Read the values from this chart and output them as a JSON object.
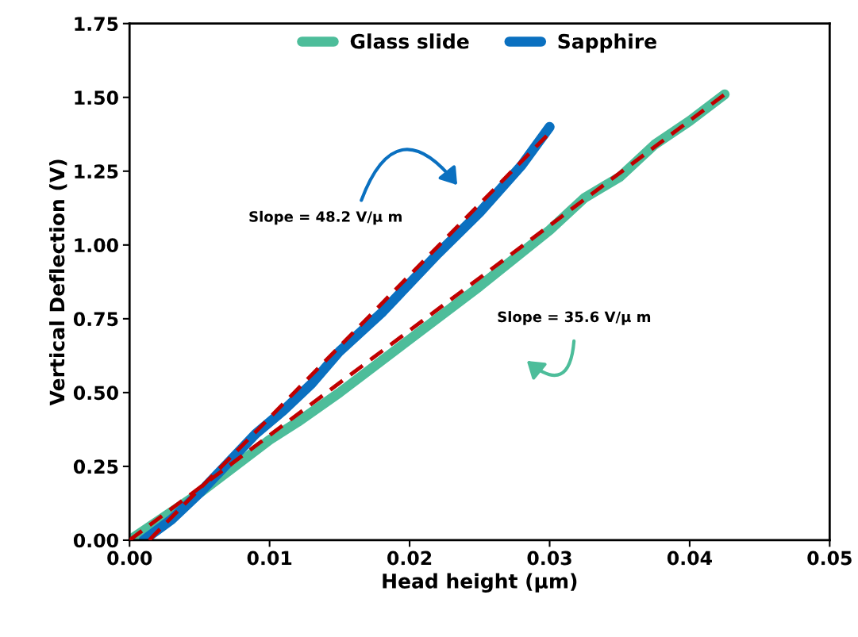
{
  "chart_data": {
    "type": "line",
    "xlabel": "Head height (μm)",
    "ylabel": "Vertical Deflection (V)",
    "xlim": [
      0,
      0.05
    ],
    "xticks": [
      {
        "value": 0,
        "label": "0.00"
      },
      {
        "value": 0.01,
        "label": "0.01"
      },
      {
        "value": 0.02,
        "label": "0.02"
      },
      {
        "value": 0.03,
        "label": "0.03"
      },
      {
        "value": 0.04,
        "label": "0.04"
      },
      {
        "value": 0.05,
        "label": "0.05"
      }
    ],
    "ylim": [
      0,
      1.75
    ],
    "yticks": [
      {
        "value": 0,
        "label": "0.00"
      },
      {
        "value": 0.25,
        "label": "0.25"
      },
      {
        "value": 0.5,
        "label": "0.50"
      },
      {
        "value": 0.75,
        "label": "0.75"
      },
      {
        "value": 1.0,
        "label": "1.00"
      },
      {
        "value": 1.25,
        "label": "1.25"
      },
      {
        "value": 1.5,
        "label": "1.50"
      },
      {
        "value": 1.75,
        "label": "1.75"
      }
    ],
    "grid": false,
    "legend": "top",
    "marker": "none",
    "line_style": "solid",
    "series": [
      {
        "name": "Glass slide",
        "color": "#4dbd9a",
        "x": [
          0,
          0.005,
          0.01,
          0.012,
          0.015,
          0.02,
          0.025,
          0.03,
          0.0325,
          0.035,
          0.0375,
          0.04,
          0.0425
        ],
        "values": [
          0,
          0.16,
          0.34,
          0.4,
          0.5,
          0.68,
          0.86,
          1.05,
          1.16,
          1.23,
          1.34,
          1.42,
          1.51
        ]
      },
      {
        "name": "Sapphire",
        "color": "#0a70c0",
        "x": [
          0.001,
          0.003,
          0.005,
          0.007,
          0.009,
          0.011,
          0.013,
          0.015,
          0.018,
          0.02,
          0.022,
          0.025,
          0.028,
          0.03
        ],
        "values": [
          0,
          0.07,
          0.16,
          0.26,
          0.36,
          0.44,
          0.53,
          0.64,
          0.77,
          0.87,
          0.97,
          1.11,
          1.27,
          1.4
        ]
      },
      {
        "type": "line",
        "line_style": "dashed",
        "color": "#c00000",
        "x": [
          0,
          0.0425
        ],
        "values": [
          0,
          1.51
        ]
      },
      {
        "type": "line",
        "line_style": "dashed",
        "color": "#c00000",
        "x": [
          0.0014,
          0.03
        ],
        "values": [
          0,
          1.38
        ]
      }
    ],
    "annotations": [
      "Slope = 48.2 V/μ m",
      "Slope = 35.6 V/μ m"
    ]
  }
}
